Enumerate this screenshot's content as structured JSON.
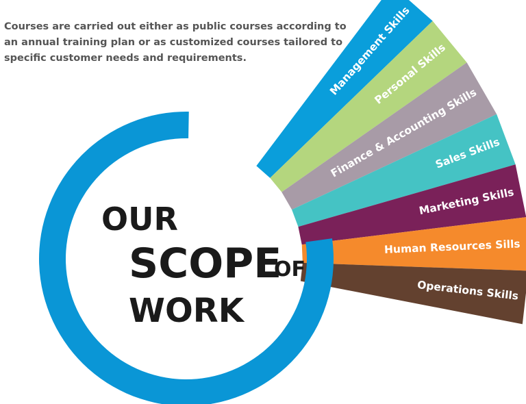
{
  "intro": "Courses are carried out either as public courses according to an annual training plan or as customized courses tailored to specific customer needs and requirements.",
  "title": {
    "line1": "OUR",
    "line2": "SCOPE",
    "line2b": "OF",
    "line3": "WORK"
  },
  "ring_color": "#0a96d6",
  "skills": [
    {
      "label": "Management Skills",
      "color": "#0a9edb"
    },
    {
      "label": "Personal Skills",
      "color": "#b4d67e"
    },
    {
      "label": "Finance & Accounting Skills",
      "color": "#a89ba7"
    },
    {
      "label": "Sales Skills",
      "color": "#45c3c4"
    },
    {
      "label": "Marketing Skills",
      "color": "#7a2159"
    },
    {
      "label": "Human Resources Sills",
      "color": "#f58a2c"
    },
    {
      "label": "Operations Skills",
      "color": "#63412f"
    }
  ]
}
